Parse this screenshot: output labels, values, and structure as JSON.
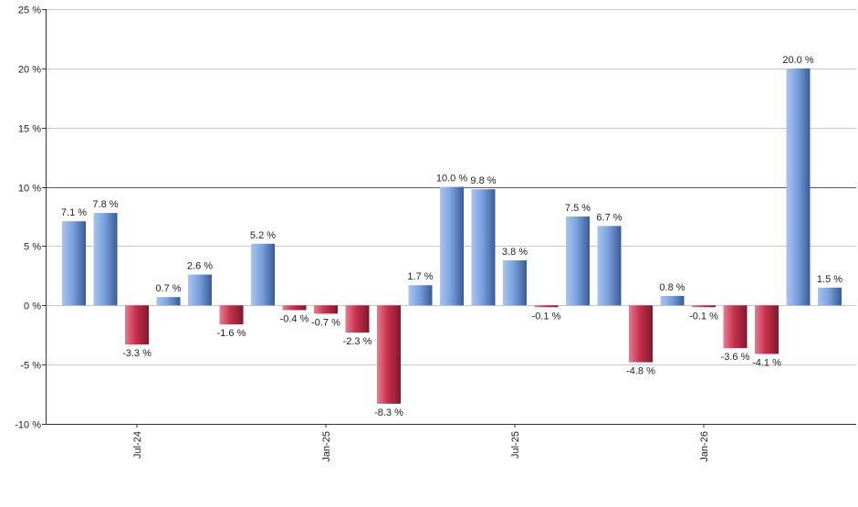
{
  "chart_data": {
    "type": "bar",
    "title": "",
    "xlabel": "",
    "ylabel": "",
    "ylim": [
      -10,
      25
    ],
    "yticks": [
      -10,
      -5,
      0,
      5,
      10,
      15,
      20,
      25
    ],
    "ytick_labels": [
      "-10 %",
      "-5 %",
      "0 %",
      "5 %",
      "10 %",
      "15 %",
      "20 %",
      "25 %"
    ],
    "xtick_labels": [
      {
        "label": "Jul-24",
        "index": 2
      },
      {
        "label": "Jan-25",
        "index": 8
      },
      {
        "label": "Jul-25",
        "index": 14
      },
      {
        "label": "Jan-26",
        "index": 20
      }
    ],
    "reference_line": {
      "value": 10,
      "color": "#2e7d2e"
    },
    "grid": true,
    "legend": "none",
    "values": [
      7.1,
      7.8,
      -3.3,
      0.7,
      2.6,
      -1.6,
      5.2,
      -0.4,
      -0.7,
      -2.3,
      -8.3,
      1.7,
      10.0,
      9.8,
      3.8,
      -0.1,
      7.5,
      6.7,
      -4.8,
      0.8,
      -0.1,
      -3.6,
      -4.1,
      20.0,
      1.5
    ],
    "value_labels": [
      "7.1 %",
      "7.8 %",
      "-3.3 %",
      "0.7 %",
      "2.6 %",
      "-1.6 %",
      "5.2 %",
      "-0.4 %",
      "-0.7 %",
      "-2.3 %",
      "-8.3 %",
      "1.7 %",
      "10.0 %",
      "9.8 %",
      "3.8 %",
      "-0.1 %",
      "7.5 %",
      "6.7 %",
      "-4.8 %",
      "0.8 %",
      "-0.1 %",
      "-3.6 %",
      "-4.1 %",
      "20.0 %",
      "1.5 %"
    ],
    "colors": {
      "positive": "#7aa2e0",
      "negative": "#c8304c",
      "grid": "#c8c8c8",
      "axis": "#333333"
    }
  }
}
